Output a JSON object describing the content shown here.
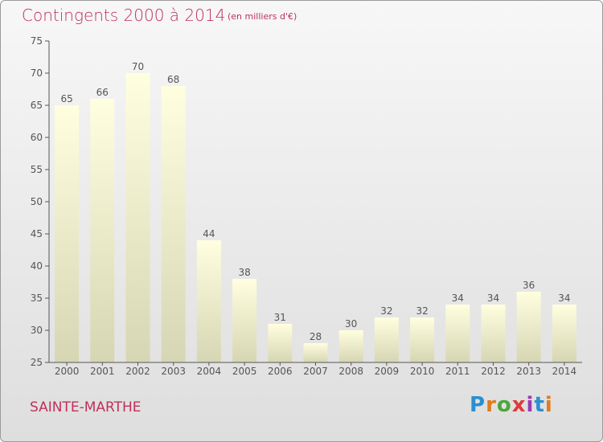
{
  "header": {
    "title": "Contingents 2000 à 2014",
    "subtitle": "(en milliers d'€)"
  },
  "footer": {
    "location": "SAINTE-MARTHE",
    "logo_text": "Proxiti"
  },
  "colors": {
    "title": "#c0305a",
    "bar_top": "#ffffe0",
    "bar_bottom": "#d6d6b4",
    "axis": "#555555"
  },
  "chart_data": {
    "type": "bar",
    "title": "Contingents 2000 à 2014",
    "subtitle": "(en milliers d'€)",
    "categories": [
      "2000",
      "2001",
      "2002",
      "2003",
      "2004",
      "2005",
      "2006",
      "2007",
      "2008",
      "2009",
      "2010",
      "2011",
      "2012",
      "2013",
      "2014"
    ],
    "values": [
      65,
      66,
      70,
      68,
      44,
      38,
      31,
      28,
      30,
      32,
      32,
      34,
      34,
      36,
      34
    ],
    "ylim": [
      25,
      75
    ],
    "yticks": [
      25,
      30,
      35,
      40,
      45,
      50,
      55,
      60,
      65,
      70,
      75
    ],
    "xlabel": "",
    "ylabel": "",
    "grid": false,
    "legend": "none"
  }
}
